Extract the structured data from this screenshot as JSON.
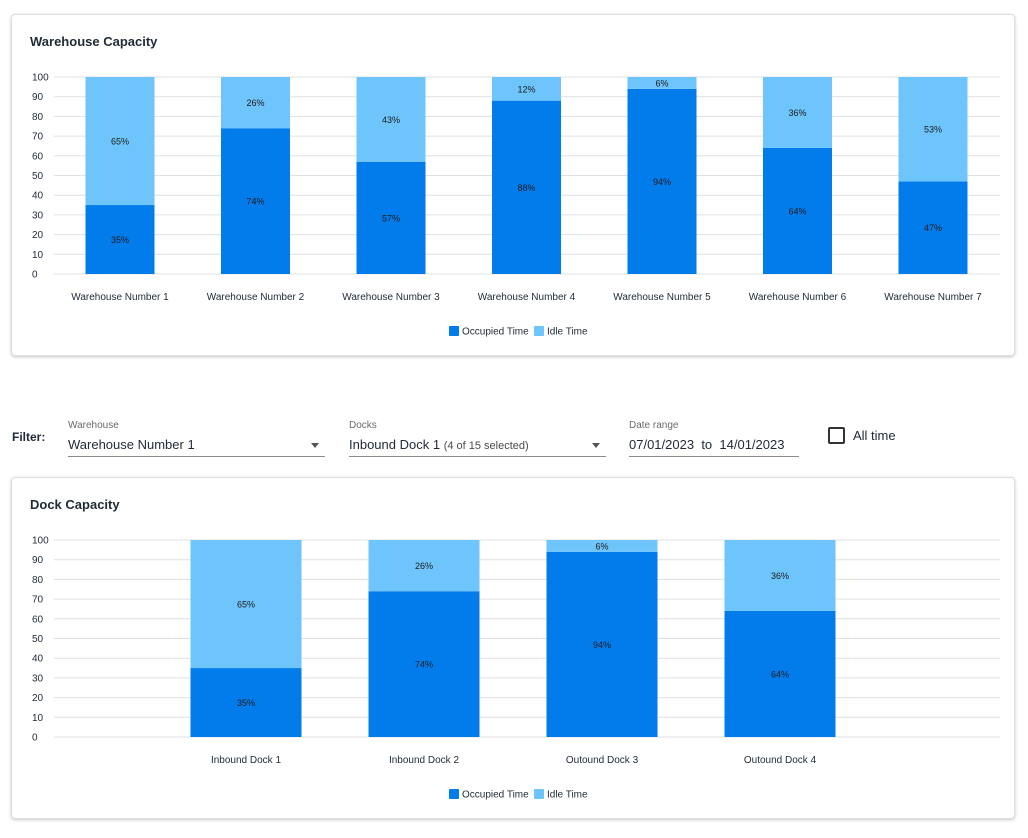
{
  "colors": {
    "occupied": "#037ceb",
    "idle": "#6ec5fb",
    "grid": "#e0e0e0",
    "text": "#1f2a36"
  },
  "filter": {
    "label": "Filter:",
    "warehouse": {
      "label": "Warehouse",
      "value": "Warehouse Number 1"
    },
    "docks": {
      "label": "Docks",
      "value": "Inbound Dock 1",
      "note": "(4 of 15 selected)"
    },
    "date_range": {
      "label": "Date range",
      "from": "07/01/2023",
      "sep": "to",
      "to": "14/01/2023"
    },
    "all_time": {
      "label": "All time",
      "checked": false
    }
  },
  "chart_data": [
    {
      "id": "warehouse",
      "type": "bar",
      "stacked": true,
      "title": "Warehouse Capacity",
      "categories": [
        "Warehouse Number 1",
        "Warehouse Number 2",
        "Warehouse Number 3",
        "Warehouse Number 4",
        "Warehouse Number 5",
        "Warehouse Number 6",
        "Warehouse Number 7"
      ],
      "series": [
        {
          "name": "Occupied Time",
          "values": [
            35,
            74,
            57,
            88,
            94,
            64,
            47
          ],
          "labels": [
            "35%",
            "74%",
            "57%",
            "88%",
            "94%",
            "64%",
            "47%"
          ]
        },
        {
          "name": "Idle Time",
          "values": [
            65,
            26,
            43,
            12,
            6,
            36,
            53
          ],
          "labels": [
            "65%",
            "26%",
            "43%",
            "12%",
            "6%",
            "36%",
            "53%"
          ]
        }
      ],
      "ylim": [
        0,
        100
      ],
      "yticks": [
        "0",
        "10",
        "20",
        "30",
        "40",
        "50",
        "60",
        "70",
        "80",
        "90",
        "100"
      ],
      "grid": true,
      "legend": "bottom"
    },
    {
      "id": "dock",
      "type": "bar",
      "stacked": true,
      "title": "Dock Capacity",
      "categories": [
        "Inbound Dock 1",
        "Inbound Dock 2",
        "Outound Dock 3",
        "Outound Dock 4"
      ],
      "series": [
        {
          "name": "Occupied Time",
          "values": [
            35,
            74,
            94,
            64
          ],
          "labels": [
            "35%",
            "74%",
            "94%",
            "64%"
          ]
        },
        {
          "name": "Idle Time",
          "values": [
            65,
            26,
            6,
            36
          ],
          "labels": [
            "65%",
            "26%",
            "6%",
            "36%"
          ]
        }
      ],
      "ylim": [
        0,
        100
      ],
      "yticks": [
        "0",
        "10",
        "20",
        "30",
        "40",
        "50",
        "60",
        "70",
        "80",
        "90",
        "100"
      ],
      "grid": true,
      "legend": "bottom"
    }
  ]
}
